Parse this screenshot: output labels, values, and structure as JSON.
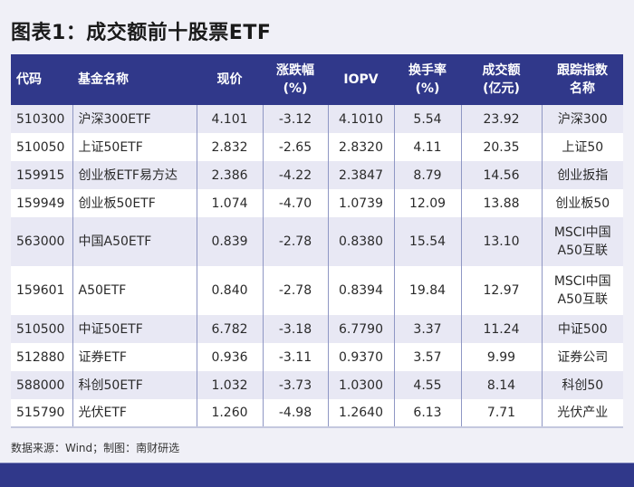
{
  "title": "图表1：成交额前十股票ETF",
  "table": {
    "headers": [
      {
        "line1": "代码",
        "line2": ""
      },
      {
        "line1": "基金名称",
        "line2": ""
      },
      {
        "line1": "现价",
        "line2": ""
      },
      {
        "line1": "涨跌幅",
        "line2": "(%)"
      },
      {
        "line1": "IOPV",
        "line2": ""
      },
      {
        "line1": "换手率",
        "line2": "(%)"
      },
      {
        "line1": "成交额",
        "line2": "(亿元)"
      },
      {
        "line1": "跟踪指数",
        "line2": "名称"
      }
    ],
    "rows": [
      {
        "code": "510300",
        "name": "沪深300ETF",
        "price": "4.101",
        "change": "-3.12",
        "iopv": "4.1010",
        "turnover": "5.54",
        "volume": "23.92",
        "index_l1": "沪深300",
        "index_l2": ""
      },
      {
        "code": "510050",
        "name": "上证50ETF",
        "price": "2.832",
        "change": "-2.65",
        "iopv": "2.8320",
        "turnover": "4.11",
        "volume": "20.35",
        "index_l1": "上证50",
        "index_l2": ""
      },
      {
        "code": "159915",
        "name": "创业板ETF易方达",
        "price": "2.386",
        "change": "-4.22",
        "iopv": "2.3847",
        "turnover": "8.79",
        "volume": "14.56",
        "index_l1": "创业扳指",
        "index_l2": ""
      },
      {
        "code": "159949",
        "name": "创业板50ETF",
        "price": "1.074",
        "change": "-4.70",
        "iopv": "1.0739",
        "turnover": "12.09",
        "volume": "13.88",
        "index_l1": "创业板50",
        "index_l2": ""
      },
      {
        "code": "563000",
        "name": "中国A50ETF",
        "price": "0.839",
        "change": "-2.78",
        "iopv": "0.8380",
        "turnover": "15.54",
        "volume": "13.10",
        "index_l1": "MSCI中国",
        "index_l2": "A50互联"
      },
      {
        "code": "159601",
        "name": "A50ETF",
        "price": "0.840",
        "change": "-2.78",
        "iopv": "0.8394",
        "turnover": "19.84",
        "volume": "12.97",
        "index_l1": "MSCI中国",
        "index_l2": "A50互联"
      },
      {
        "code": "510500",
        "name": "中证50ETF",
        "price": "6.782",
        "change": "-3.18",
        "iopv": "6.7790",
        "turnover": "3.37",
        "volume": "11.24",
        "index_l1": "中证500",
        "index_l2": ""
      },
      {
        "code": "512880",
        "name": "证券ETF",
        "price": "0.936",
        "change": "-3.11",
        "iopv": "0.9370",
        "turnover": "3.57",
        "volume": "9.99",
        "index_l1": "证券公司",
        "index_l2": ""
      },
      {
        "code": "588000",
        "name": "科创50ETF",
        "price": "1.032",
        "change": "-3.73",
        "iopv": "1.0300",
        "turnover": "4.55",
        "volume": "8.14",
        "index_l1": "科创50",
        "index_l2": ""
      },
      {
        "code": "515790",
        "name": "光伏ETF",
        "price": "1.260",
        "change": "-4.98",
        "iopv": "1.2640",
        "turnover": "6.13",
        "volume": "7.71",
        "index_l1": "光伏产业",
        "index_l2": ""
      }
    ]
  },
  "source": "数据来源：Wind；制图：南财研选",
  "colors": {
    "header_bg": "#30388a",
    "row_shade": "#e8e8f4",
    "row_white": "#ffffff",
    "page_bg": "#f0f0f7"
  }
}
